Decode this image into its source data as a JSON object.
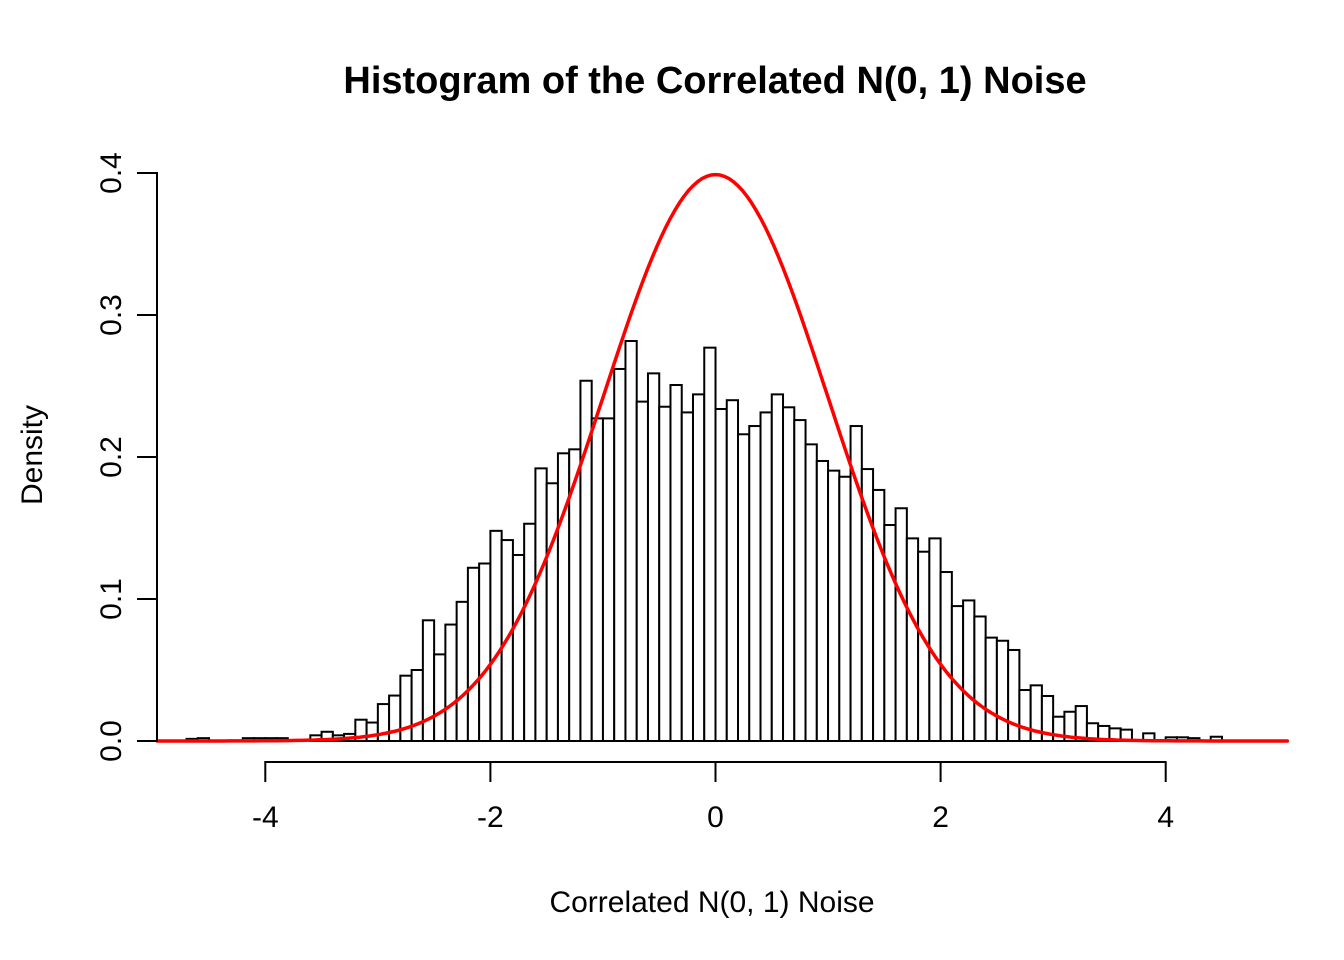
{
  "figure": {
    "background_color": "#ffffff",
    "foreground_color": "#000000"
  },
  "chart_data": {
    "type": "bar",
    "subtype": "histogram",
    "title": "Histogram of the Correlated N(0, 1) Noise",
    "xlabel": "Correlated N(0, 1) Noise",
    "ylabel": "Density",
    "bar_fill": "#ffffff",
    "bar_stroke": "#000000",
    "grid": false,
    "xlim": [
      -5,
      5.1
    ],
    "ylim": [
      0,
      0.4
    ],
    "x_ticks": [
      -4,
      -2,
      0,
      2,
      4
    ],
    "x_tick_labels": [
      "-4",
      "-2",
      "0",
      "2",
      "4"
    ],
    "y_ticks": [
      0.0,
      0.1,
      0.2,
      0.3,
      0.4
    ],
    "y_tick_labels": [
      "0.0",
      "0.1",
      "0.2",
      "0.3",
      "0.4"
    ],
    "bin_start": -4.7,
    "bin_width": 0.1,
    "densities": [
      0.0015,
      0.002,
      0,
      0,
      0,
      0.002,
      0.002,
      0.002,
      0.002,
      0,
      0,
      0.004,
      0.0065,
      0.004,
      0.005,
      0.015,
      0.013,
      0.026,
      0.032,
      0.046,
      0.05,
      0.085,
      0.061,
      0.082,
      0.098,
      0.122,
      0.125,
      0.148,
      0.1415,
      0.131,
      0.153,
      0.192,
      0.1815,
      0.2026,
      0.2054,
      0.2537,
      0.2272,
      0.2272,
      0.262,
      0.2817,
      0.239,
      0.2589,
      0.2354,
      0.2507,
      0.2314,
      0.2441,
      0.277,
      0.2338,
      0.24,
      0.216,
      0.2218,
      0.2314,
      0.2441,
      0.235,
      0.226,
      0.2089,
      0.1972,
      0.1904,
      0.1861,
      0.2218,
      0.1915,
      0.1768,
      0.1521,
      0.1639,
      0.1427,
      0.1333,
      0.1427,
      0.119,
      0.095,
      0.099,
      0.0877,
      0.0728,
      0.0706,
      0.0641,
      0.0359,
      0.0392,
      0.0317,
      0.0171,
      0.0206,
      0.0246,
      0.0125,
      0.0106,
      0.0089,
      0.008,
      0,
      0.0054,
      0,
      0.0026,
      0.0026,
      0.002,
      0,
      0.003
    ],
    "normal_curve": {
      "name": "N(0, 1) density overlay",
      "mean": 0,
      "sd": 1,
      "peak_density": 0.3989,
      "color": "#ff0000"
    },
    "legend": null
  }
}
